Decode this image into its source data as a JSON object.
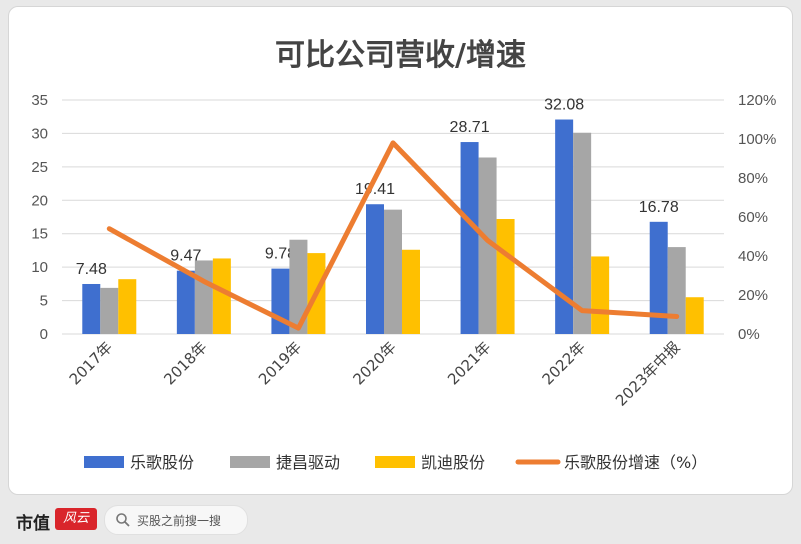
{
  "chart_data": {
    "type": "bar",
    "title": "可比公司营收/增速",
    "categories": [
      "2017年",
      "2018年",
      "2019年",
      "2020年",
      "2021年",
      "2022年",
      "2023年中报"
    ],
    "series": [
      {
        "name": "乐歌股份",
        "type": "bar",
        "axis": "left",
        "color": "#3f6fcf",
        "values": [
          7.48,
          9.47,
          9.78,
          19.41,
          28.71,
          32.08,
          16.78
        ],
        "data_labels": [
          "7.48",
          "9.47",
          "9.78",
          "19.41",
          "28.71",
          "32.08",
          "16.78"
        ]
      },
      {
        "name": "捷昌驱动",
        "type": "bar",
        "axis": "left",
        "color": "#a6a6a6",
        "values": [
          6.9,
          11.0,
          14.1,
          18.6,
          26.4,
          30.1,
          13.0
        ]
      },
      {
        "name": "凯迪股份",
        "type": "bar",
        "axis": "left",
        "color": "#ffc000",
        "values": [
          8.2,
          11.3,
          12.1,
          12.6,
          17.2,
          11.6,
          5.5
        ]
      },
      {
        "name": "乐歌股份增速（%）",
        "type": "line",
        "axis": "right",
        "color": "#ed7d31",
        "values": [
          54,
          27,
          3,
          98,
          48,
          12,
          9
        ]
      }
    ],
    "ylim": [
      0,
      35
    ],
    "y_ticks": [
      "0",
      "5",
      "10",
      "15",
      "20",
      "25",
      "30",
      "35"
    ],
    "y2lim": [
      0,
      120
    ],
    "y2_ticks": [
      "0%",
      "20%",
      "40%",
      "60%",
      "80%",
      "100%",
      "120%"
    ],
    "grid": true,
    "legend_position": "bottom"
  },
  "footer": {
    "brand": "市值",
    "brand_badge": "风云",
    "search_placeholder": "买股之前搜一搜"
  }
}
